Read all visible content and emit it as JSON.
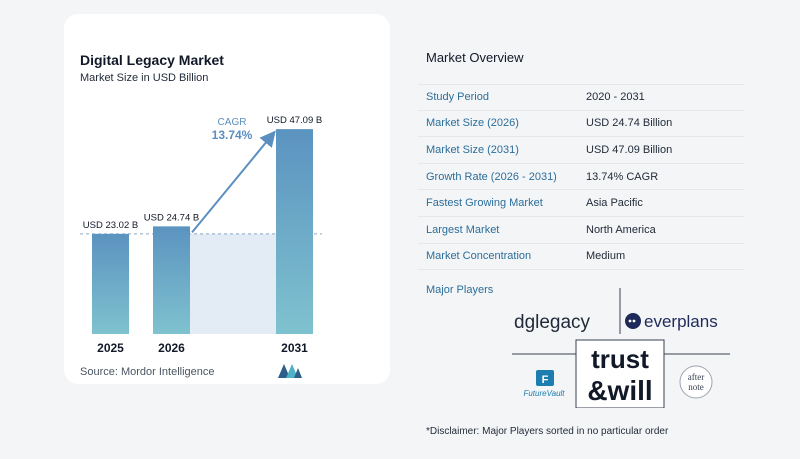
{
  "chart": {
    "title": "Digital Legacy Market",
    "subtitle": "Market Size in USD Billion",
    "source": "Source:  Mordor Intelligence",
    "cagr_label": "CAGR",
    "cagr_value": "13.74%"
  },
  "chart_data": {
    "type": "bar",
    "categories": [
      "2025",
      "2026",
      "2031"
    ],
    "values": [
      23.02,
      24.74,
      47.09
    ],
    "data_labels": [
      "USD 23.02 B",
      "USD 24.74 B",
      "USD 47.09 B"
    ],
    "title": "Digital Legacy Market",
    "subtitle": "Market Size in USD Billion",
    "ylim": [
      0,
      50
    ],
    "grid": false,
    "colors": {
      "bar_top": "#5b93c0",
      "bar_bottom": "#7fc2cf",
      "arrow": "#5b8fbf",
      "shade": "#e3ecf4",
      "baseline": "#8aa8c0"
    }
  },
  "overview": {
    "title": "Market Overview",
    "rows": [
      {
        "label": "Study Period",
        "value": "2020 - 2031"
      },
      {
        "label": "Market Size (2026)",
        "value": "USD 24.74 Billion"
      },
      {
        "label": "Market Size (2031)",
        "value": "USD 47.09 Billion"
      },
      {
        "label": "Growth Rate (2026 - 2031)",
        "value": "13.74% CAGR"
      },
      {
        "label": "Fastest Growing Market",
        "value": "Asia Pacific"
      },
      {
        "label": "Largest Market",
        "value": "North America"
      },
      {
        "label": "Market Concentration",
        "value": "Medium"
      }
    ]
  },
  "players": {
    "title": "Major Players",
    "dglegacy": "dglegacy",
    "everplans": "everplans",
    "trust": "trust",
    "will": "&will",
    "futurevault": "FutureVault",
    "afternote_1": "after",
    "afternote_2": "note"
  },
  "disclaimer": "*Disclaimer: Major Players sorted in no particular order"
}
